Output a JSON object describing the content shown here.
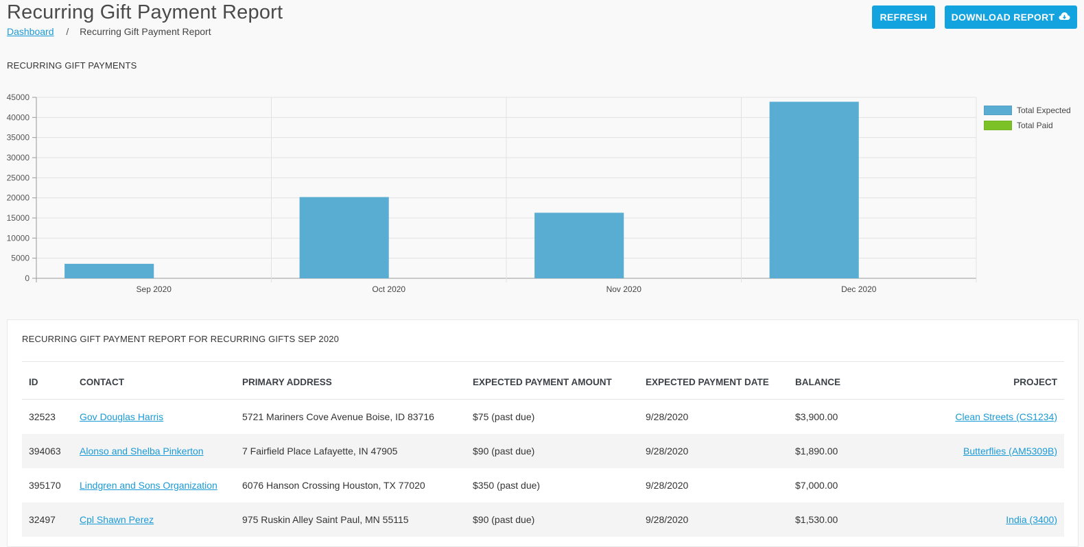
{
  "header": {
    "title": "Recurring Gift Payment Report",
    "breadcrumb": {
      "home": "Dashboard",
      "separator": "/",
      "current": "Recurring Gift Payment Report"
    },
    "buttons": {
      "refresh": "REFRESH",
      "download": "DOWNLOAD REPORT"
    }
  },
  "chart_section": {
    "label": "RECURRING GIFT PAYMENTS"
  },
  "chart_data": {
    "type": "bar",
    "categories": [
      "Sep 2020",
      "Oct 2020",
      "Nov 2020",
      "Dec 2020"
    ],
    "series": [
      {
        "name": "Total Expected",
        "color": "#5aadd2",
        "values": [
          3600,
          20200,
          16300,
          43900
        ]
      },
      {
        "name": "Total Paid",
        "color": "#7cc226",
        "values": [
          0,
          0,
          0,
          0
        ]
      }
    ],
    "yticks": [
      "0",
      "5000",
      "10000",
      "15000",
      "20000",
      "25000",
      "30000",
      "35000",
      "40000",
      "45000"
    ],
    "ylim": [
      0,
      45000
    ],
    "grid": true,
    "legend_position": "right"
  },
  "report": {
    "title": "RECURRING GIFT PAYMENT REPORT FOR RECURRING GIFTS SEP 2020",
    "columns": [
      "ID",
      "CONTACT",
      "PRIMARY ADDRESS",
      "EXPECTED PAYMENT AMOUNT",
      "EXPECTED PAYMENT DATE",
      "BALANCE",
      "PROJECT"
    ],
    "rows": [
      {
        "id": "32523",
        "contact": "Gov Douglas Harris",
        "address": "5721 Mariners Cove Avenue Boise, ID 83716",
        "amount": "$75 (past due)",
        "date": "9/28/2020",
        "balance": "$3,900.00",
        "project": "Clean Streets (CS1234)"
      },
      {
        "id": "394063",
        "contact": "Alonso and Shelba Pinkerton",
        "address": "7 Fairfield Place Lafayette, IN 47905",
        "amount": "$90 (past due)",
        "date": "9/28/2020",
        "balance": "$1,890.00",
        "project": "Butterflies (AM5309B)"
      },
      {
        "id": "395170",
        "contact": "Lindgren and Sons Organization",
        "address": "6076 Hanson Crossing Houston, TX 77020",
        "amount": "$350 (past due)",
        "date": "9/28/2020",
        "balance": "$7,000.00",
        "project": ""
      },
      {
        "id": "32497",
        "contact": "Cpl Shawn Perez",
        "address": "975 Ruskin Alley Saint Paul, MN 55115",
        "amount": "$90 (past due)",
        "date": "9/28/2020",
        "balance": "$1,530.00",
        "project": "India (3400)"
      }
    ]
  }
}
